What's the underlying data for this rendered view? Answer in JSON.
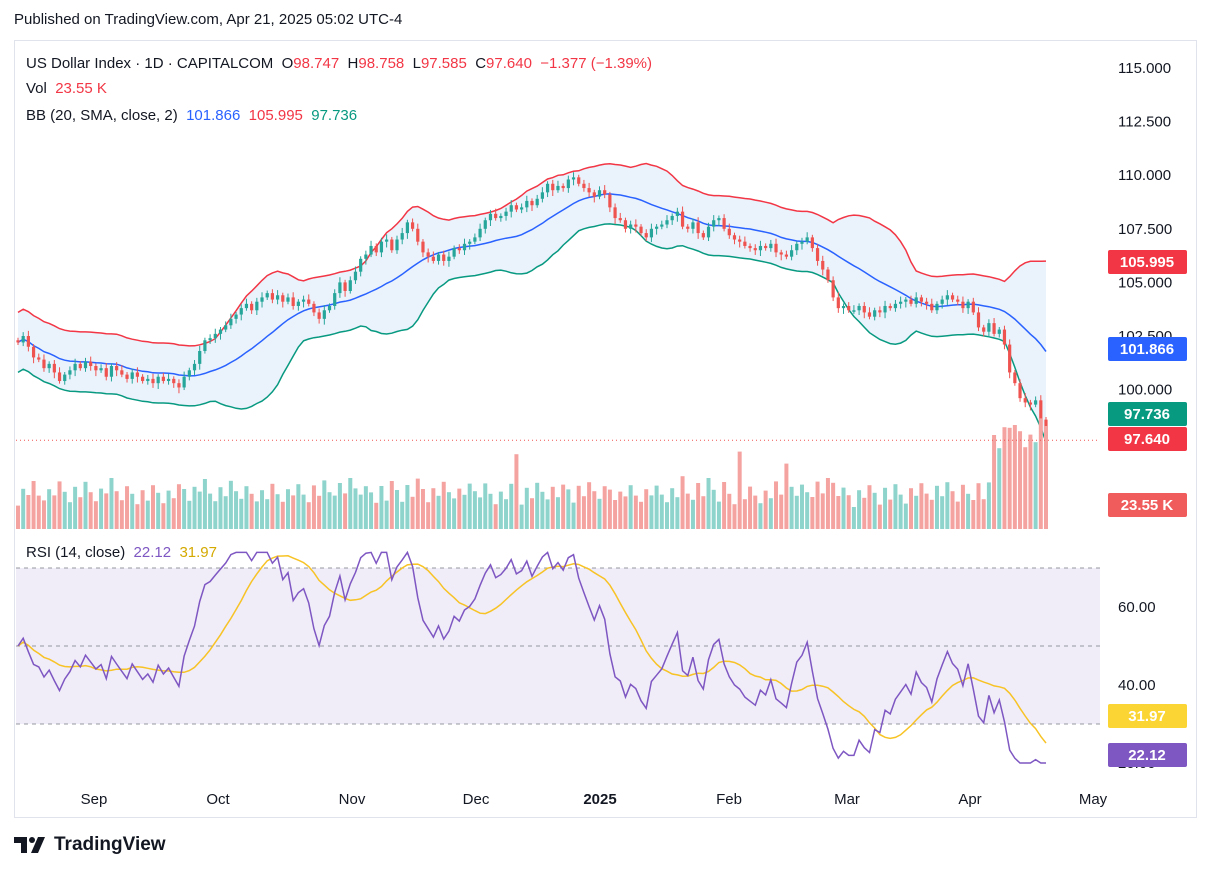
{
  "header": {
    "published": "Published on TradingView.com, Apr 21, 2025 05:02 UTC-4"
  },
  "legend": {
    "symbol": "US Dollar Index · 1D · CAPITALCOM",
    "o_label": "O",
    "o_value": "98.747",
    "h_label": "H",
    "h_value": "98.758",
    "l_label": "L",
    "l_value": "97.585",
    "c_label": "C",
    "c_value": "97.640",
    "change": "−1.377 (−1.39%)",
    "vol_label": "Vol",
    "vol_value": "23.55 K",
    "bb_label": "BB (20, SMA, close, 2)",
    "bb_basis": "101.866",
    "bb_upper": "105.995",
    "bb_lower": "97.736",
    "rsi_label": "RSI (14, close)",
    "rsi_value": "22.12",
    "rsi_ma": "31.97"
  },
  "price_labels": {
    "upper": "105.995",
    "basis": "101.866",
    "lower": "97.736",
    "close": "97.640",
    "volume": "23.55 K",
    "rsi": "22.12",
    "rsi_ma": "31.97"
  },
  "colors": {
    "up": "#26a69a",
    "down": "#ef5350",
    "upper_band": "#f23645",
    "basis": "#2962ff",
    "lower_band": "#089981",
    "band_fill": "#eaf2fb",
    "rsi": "#7e57c2",
    "rsi_ma": "#f7c325",
    "rsi_bg": "#f0ecf8",
    "vol_up": "#8ed3cc",
    "vol_down": "#f5a3a1"
  },
  "branding": {
    "logo_text": "TradingView"
  },
  "chart_data": {
    "type": "candlestick",
    "title": "US Dollar Index · 1D · CAPITALCOM",
    "price_axis": {
      "ticks": [
        "115.000",
        "112.500",
        "110.000",
        "107.500",
        "105.000",
        "102.500",
        "100.000",
        "97.500"
      ],
      "range": [
        96.3,
        116.1
      ]
    },
    "rsi_axis": {
      "ticks": [
        "60.00",
        "40.00",
        "20.00"
      ],
      "levels": [
        70,
        50,
        30
      ],
      "range": [
        19,
        73
      ]
    },
    "time_axis": [
      "Sep",
      "Oct",
      "Nov",
      "Dec",
      "2025",
      "Feb",
      "Mar",
      "Apr",
      "May"
    ],
    "series": [
      {
        "name": "Price",
        "daily_close": [
          102.2,
          102.5,
          102.0,
          101.5,
          101.4,
          101.0,
          101.2,
          100.8,
          100.4,
          100.7,
          100.9,
          101.2,
          101.0,
          101.3,
          101.1,
          100.9,
          101.0,
          100.6,
          101.1,
          100.9,
          100.7,
          100.5,
          100.8,
          100.6,
          100.4,
          100.5,
          100.3,
          100.6,
          100.4,
          100.5,
          100.3,
          100.1,
          100.6,
          100.9,
          101.2,
          101.8,
          102.3,
          102.4,
          102.6,
          102.8,
          103.0,
          103.3,
          103.5,
          103.8,
          104.0,
          103.7,
          104.1,
          104.3,
          104.5,
          104.2,
          104.4,
          104.1,
          104.3,
          103.9,
          104.1,
          104.2,
          104.0,
          103.6,
          103.3,
          103.7,
          103.9,
          104.5,
          105.0,
          104.6,
          105.1,
          105.5,
          106.1,
          106.3,
          106.7,
          106.4,
          106.9,
          107.0,
          106.5,
          107.0,
          107.3,
          107.8,
          107.5,
          106.9,
          106.4,
          106.2,
          106.0,
          106.3,
          106.0,
          106.2,
          106.6,
          106.5,
          106.8,
          106.9,
          107.1,
          107.5,
          107.9,
          108.2,
          108.0,
          108.1,
          108.3,
          108.6,
          108.4,
          108.5,
          108.8,
          108.6,
          108.9,
          109.2,
          109.6,
          109.3,
          109.5,
          109.4,
          109.8,
          109.9,
          109.6,
          109.4,
          109.2,
          109.0,
          109.3,
          109.1,
          108.5,
          108.0,
          107.9,
          107.5,
          107.7,
          107.6,
          107.3,
          107.1,
          107.5,
          107.6,
          107.7,
          107.9,
          108.1,
          108.3,
          107.6,
          107.5,
          107.8,
          107.3,
          107.1,
          107.6,
          107.9,
          108.0,
          107.5,
          107.2,
          107.0,
          106.9,
          106.7,
          106.6,
          106.5,
          106.7,
          106.6,
          106.8,
          106.4,
          106.3,
          106.2,
          106.5,
          106.8,
          106.9,
          107.1,
          106.6,
          106.0,
          105.6,
          105.1,
          104.3,
          103.8,
          103.9,
          103.7,
          103.7,
          103.9,
          103.6,
          103.4,
          103.7,
          103.6,
          103.9,
          103.8,
          104.0,
          104.1,
          104.2,
          104.0,
          104.3,
          104.1,
          104.0,
          103.7,
          104.0,
          104.2,
          104.4,
          104.2,
          104.1,
          103.8,
          104.1,
          103.6,
          102.9,
          102.7,
          103.1,
          102.6,
          102.8,
          102.1,
          100.8,
          100.3,
          99.6,
          99.4,
          99.3,
          99.5,
          98.6,
          97.6
        ]
      },
      {
        "name": "Volume",
        "values_k": []
      },
      {
        "name": "RSI"
      }
    ]
  }
}
